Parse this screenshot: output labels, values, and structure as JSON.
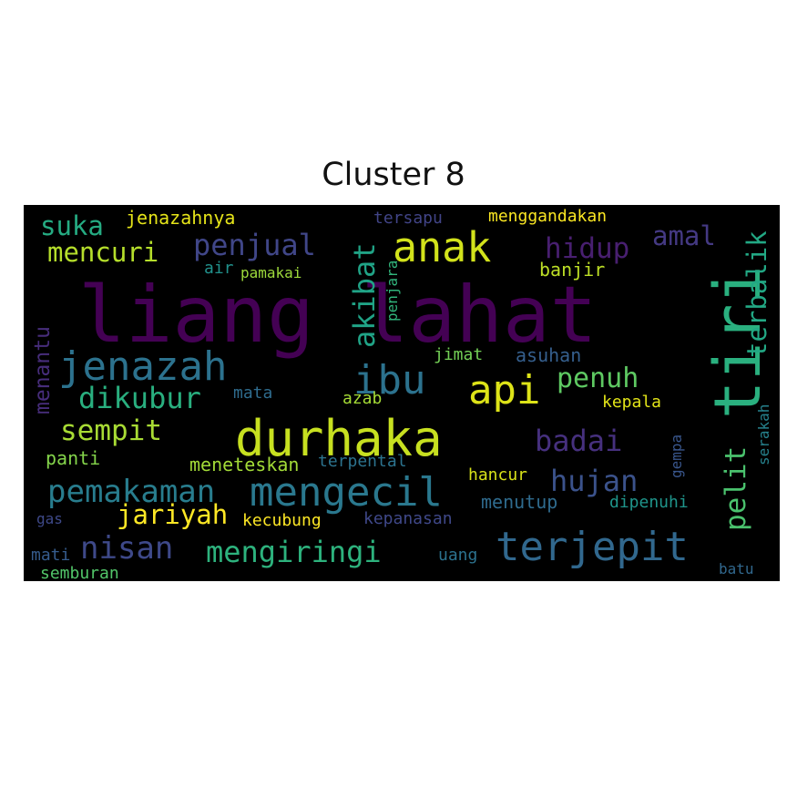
{
  "chart_data": {
    "type": "wordcloud",
    "title": "Cluster 8",
    "background": "#000000",
    "colormap": "viridis",
    "words": [
      {
        "text": "liang lahat",
        "color": "#440154"
      },
      {
        "text": "tiri",
        "color": "#2ab07f"
      },
      {
        "text": "durhaka",
        "color": "#c7e020"
      },
      {
        "text": "anak",
        "color": "#d2e21b"
      },
      {
        "text": "jenazah",
        "color": "#2c728e"
      },
      {
        "text": "mengecil",
        "color": "#2a788e"
      },
      {
        "text": "terjepit",
        "color": "#31688e"
      },
      {
        "text": "api",
        "color": "#dde318"
      },
      {
        "text": "ibu",
        "color": "#2c728e"
      },
      {
        "text": "pemakaman",
        "color": "#287d8e"
      },
      {
        "text": "mengiringi",
        "color": "#2db27d"
      },
      {
        "text": "nisan",
        "color": "#3e4989"
      },
      {
        "text": "dikubur",
        "color": "#29af7f"
      },
      {
        "text": "sempit",
        "color": "#a8db34"
      },
      {
        "text": "hujan",
        "color": "#3b528b"
      },
      {
        "text": "penjual",
        "color": "#404688"
      },
      {
        "text": "mencuri",
        "color": "#b5de2b"
      },
      {
        "text": "suka",
        "color": "#25ab82"
      },
      {
        "text": "hidup",
        "color": "#481f70"
      },
      {
        "text": "akibat",
        "color": "#20a386"
      },
      {
        "text": "terbalik",
        "color": "#22a884"
      },
      {
        "text": "pelit",
        "color": "#4ac16d"
      },
      {
        "text": "badai",
        "color": "#46307e"
      },
      {
        "text": "penuh",
        "color": "#5ec962"
      },
      {
        "text": "jariyah",
        "color": "#fde725"
      },
      {
        "text": "amal",
        "color": "#443983"
      },
      {
        "text": "menantu",
        "color": "#472d7b"
      },
      {
        "text": "jenazahnya",
        "color": "#e5e419"
      },
      {
        "text": "menggandakan",
        "color": "#fbe723"
      },
      {
        "text": "tersapu",
        "color": "#414487"
      },
      {
        "text": "banjir",
        "color": "#bddf26"
      },
      {
        "text": "air",
        "color": "#21918c"
      },
      {
        "text": "pamakai",
        "color": "#9dd93b"
      },
      {
        "text": "penjara",
        "color": "#31b57b"
      },
      {
        "text": "jimat",
        "color": "#73d056"
      },
      {
        "text": "asuhan",
        "color": "#355f8d"
      },
      {
        "text": "mata",
        "color": "#2f6c8e"
      },
      {
        "text": "azab",
        "color": "#a5db36"
      },
      {
        "text": "kepala",
        "color": "#e2e418"
      },
      {
        "text": "serakah",
        "color": "#26828e"
      },
      {
        "text": "gempa",
        "color": "#39568c"
      },
      {
        "text": "panti",
        "color": "#84d44b"
      },
      {
        "text": "meneteskan",
        "color": "#a2da37"
      },
      {
        "text": "terpental",
        "color": "#2c738e"
      },
      {
        "text": "hancur",
        "color": "#d8e219"
      },
      {
        "text": "menutup",
        "color": "#2f6b8e"
      },
      {
        "text": "dipenuhi",
        "color": "#1f958b"
      },
      {
        "text": "gas",
        "color": "#3e4989"
      },
      {
        "text": "kecubung",
        "color": "#fde725"
      },
      {
        "text": "kepanasan",
        "color": "#3f4889"
      },
      {
        "text": "mati",
        "color": "#365c8d"
      },
      {
        "text": "uang",
        "color": "#2c728e"
      },
      {
        "text": "semburan",
        "color": "#52c569"
      },
      {
        "text": "batu",
        "color": "#31688e"
      }
    ]
  }
}
